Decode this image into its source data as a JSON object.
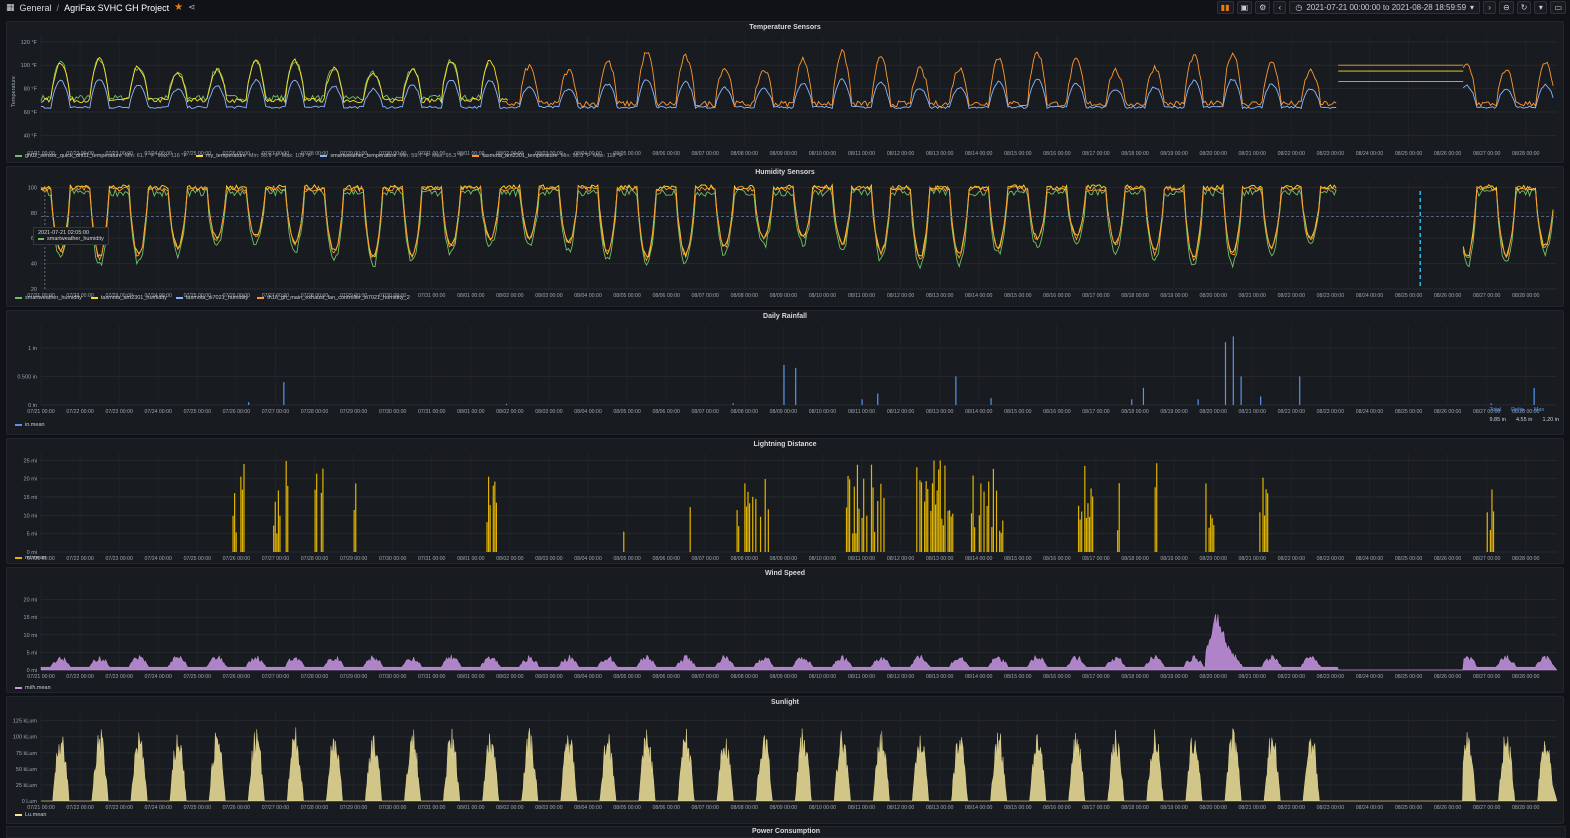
{
  "breadcrumb": {
    "folder": "General",
    "separator": "/",
    "dashboard": "AgriFax SVHC GH Project"
  },
  "toolbar": {
    "time_range": "2021-07-21 00:00:00 to 2021-08-28 18:59:59"
  },
  "dates": [
    "07/21 00:00",
    "07/22 00:00",
    "07/23 00:00",
    "07/24 00:00",
    "07/25 00:00",
    "07/26 00:00",
    "07/27 00:00",
    "07/28 00:00",
    "07/29 00:00",
    "07/30 00:00",
    "07/31 00:00",
    "08/01 00:00",
    "08/02 00:00",
    "08/03 00:00",
    "08/04 00:00",
    "08/05 00:00",
    "08/06 00:00",
    "08/07 00:00",
    "08/08 00:00",
    "08/09 00:00",
    "08/10 00:00",
    "08/11 00:00",
    "08/12 00:00",
    "08/13 00:00",
    "08/14 00:00",
    "08/15 00:00",
    "08/16 00:00",
    "08/17 00:00",
    "08/18 00:00",
    "08/19 00:00",
    "08/20 00:00",
    "08/21 00:00",
    "08/22 00:00",
    "08/23 00:00",
    "08/24 00:00",
    "08/25 00:00",
    "08/26 00:00",
    "08/27 00:00",
    "08/28 00:00"
  ],
  "colors": {
    "green": "#73bf69",
    "yellow": "#fade2a",
    "blue": "#8ab8ff",
    "orange": "#ff9830",
    "rain": "#5794f2",
    "lightning": "#e0b400",
    "wind": "#ca95e5",
    "sun": "#f2e49b"
  },
  "panels": [
    {
      "id": "temperature",
      "title": "Temperature Sensors",
      "ylabel": "Temperature",
      "yticks": [
        "40 °F",
        "60 °F",
        "80 °F",
        "100 °F",
        "120 °F"
      ],
      "legend": [
        {
          "name": "gh02_sensor_quick_dht11_temperature",
          "min": "Min: 61.7 °F",
          "max": "Max: 116 °F",
          "color": "#73bf69"
        },
        {
          "name": "my_temperature",
          "min": "Min: 50.9 °F",
          "max": "Max: 109 °F",
          "color": "#fade2a"
        },
        {
          "name": "smartweather_temperature",
          "min": "Min: 59.7 °F",
          "max": "Max: 95.3 °F",
          "color": "#8ab8ff"
        },
        {
          "name": "tasmota_am2301_temperature",
          "min": "Min: 58.3 °F",
          "max": "Max: 118 °F",
          "color": "#ff9830"
        }
      ]
    },
    {
      "id": "humidity",
      "title": "Humidity Sensors",
      "yticks": [
        "20",
        "40",
        "60",
        "80",
        "100"
      ],
      "legend": [
        {
          "name": "smartweather_humidity",
          "color": "#73bf69"
        },
        {
          "name": "tasmota_am2301_humidity",
          "color": "#fade2a"
        },
        {
          "name": "tasmota_si7021_humidity",
          "color": "#8ab8ff"
        },
        {
          "name": "th16_gh_main_exhaust_fan_controller_si7021_humidity_2",
          "color": "#ff9830"
        }
      ],
      "tooltip": {
        "time": "2021-07-21 02:05:00",
        "series": "smartweather_humidity"
      }
    },
    {
      "id": "rainfall",
      "title": "Daily Rainfall",
      "yticks": [
        "0 in",
        "0.500 in",
        "1 in"
      ],
      "legend": [
        {
          "name": "in.mean",
          "color": "#5794f2"
        }
      ],
      "stats": {
        "headers": [
          "Total",
          "Delta",
          "Max"
        ],
        "values": [
          "9.85 in",
          "4.55 in",
          "1.20 in"
        ]
      }
    },
    {
      "id": "lightning",
      "title": "Lightning Distance",
      "yticks": [
        "0 mi",
        "5 mi",
        "10 mi",
        "15 mi",
        "20 mi",
        "25 mi"
      ],
      "legend": [
        {
          "name": "mi.mean",
          "color": "#e0b400"
        }
      ]
    },
    {
      "id": "wind",
      "title": "Wind Speed",
      "yticks": [
        "0 mi",
        "5 mi",
        "10 mi",
        "15 mi",
        "20 mi"
      ],
      "legend": [
        {
          "name": "mi/h.mean",
          "color": "#ca95e5"
        }
      ]
    },
    {
      "id": "sunlight",
      "title": "Sunlight",
      "yticks": [
        "0 Lum",
        "25 kLum",
        "50 kLum",
        "75 kLum",
        "100 kLum",
        "125 kLum"
      ],
      "legend": [
        {
          "name": "Lu.mean",
          "color": "#f2e49b"
        }
      ]
    }
  ],
  "next_panel_title": "Power Consumption"
}
